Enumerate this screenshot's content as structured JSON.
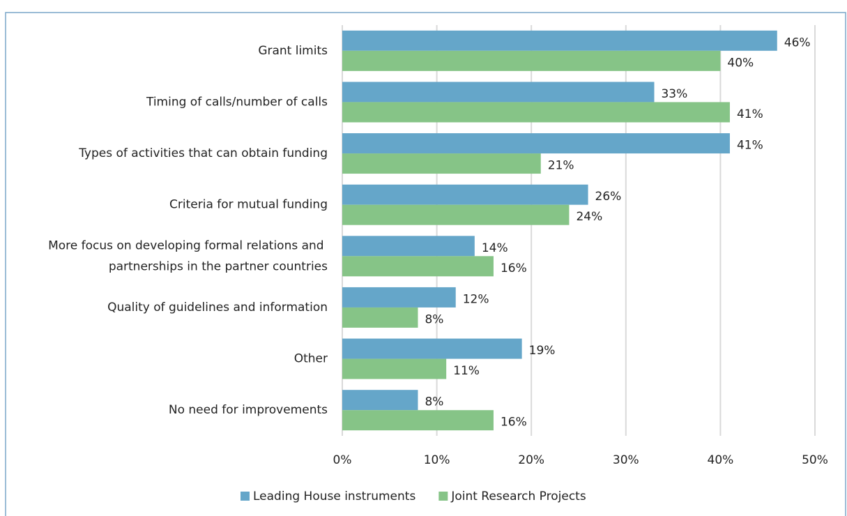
{
  "chart_data": {
    "type": "barh",
    "categories": [
      "Grant limits",
      "Timing of calls/number of calls",
      "Types of activities that can obtain funding",
      "Criteria for mutual funding",
      "More focus on developing formal relations and partnerships in the partner countries",
      "Quality of guidelines and information",
      "Other",
      "No need for improvements"
    ],
    "series": [
      {
        "name": "Leading House instruments",
        "color": "#65a6c9",
        "values": [
          46,
          33,
          41,
          26,
          14,
          12,
          19,
          8
        ],
        "value_labels": [
          "46%",
          "33%",
          "41%",
          "26%",
          "14%",
          "12%",
          "19%",
          "8%"
        ]
      },
      {
        "name": "Joint Research Projects",
        "color": "#86c487",
        "values": [
          40,
          41,
          21,
          24,
          16,
          8,
          11,
          16
        ],
        "value_labels": [
          "40%",
          "41%",
          "21%",
          "24%",
          "16%",
          "8%",
          "11%",
          "16%"
        ]
      }
    ],
    "xlim": [
      0,
      50
    ],
    "xticks": [
      {
        "value": 0,
        "label": "0%"
      },
      {
        "value": 10,
        "label": "10%"
      },
      {
        "value": 20,
        "label": "20%"
      },
      {
        "value": 30,
        "label": "30%"
      },
      {
        "value": 40,
        "label": "40%"
      },
      {
        "value": 50,
        "label": "50%"
      }
    ],
    "grid": true,
    "legend": "bottom"
  }
}
